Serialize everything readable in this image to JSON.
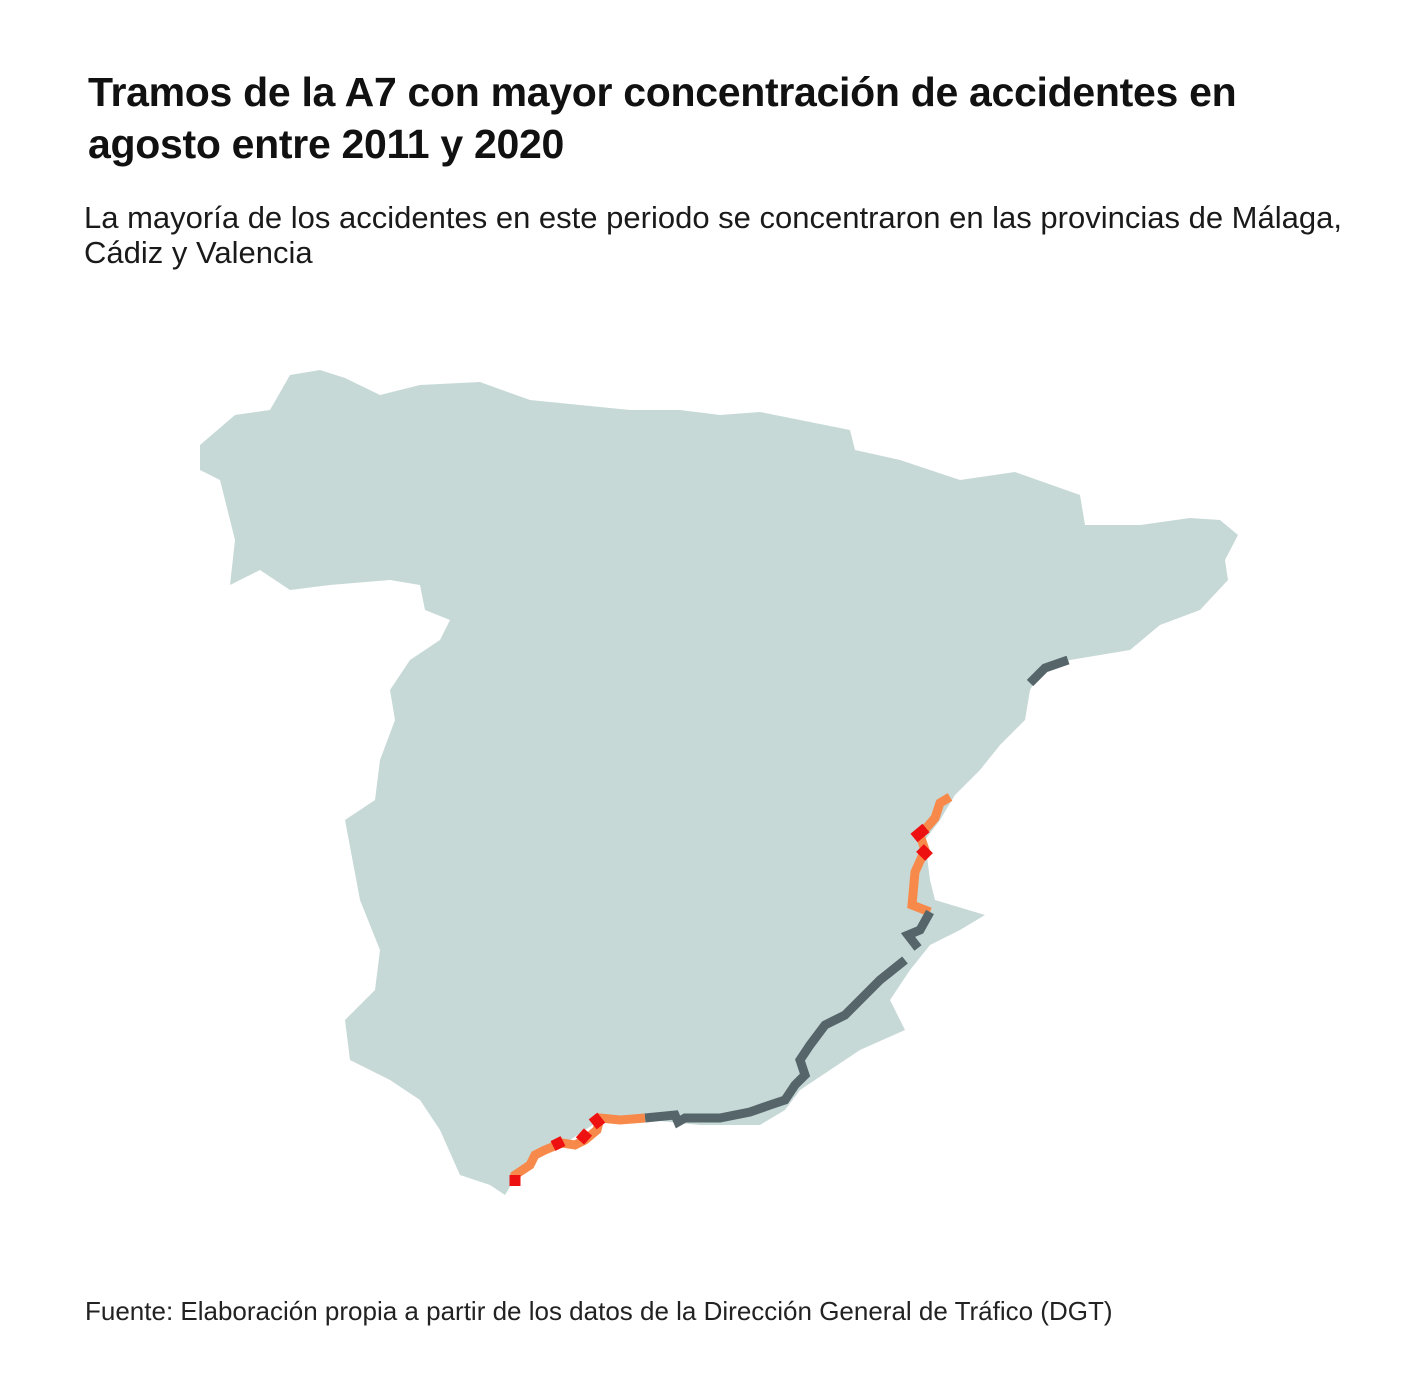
{
  "title": "Tramos de la A7 con mayor concentración de accidentes en agosto entre 2011 y 2020",
  "subtitle": "La mayoría de los accidentes en este periodo se concentraron en las provincias de Málaga, Cádiz y Valencia",
  "source": "Fuente: Elaboración propia a partir de los datos de la Dirección General de Tráfico (DGT)",
  "map": {
    "region": "Spain (peninsular)",
    "road": "A7",
    "colors": {
      "land": "#c6d9d7",
      "low": "#56656a",
      "medium": "#f78a4a",
      "high": "#ee1111"
    },
    "segments": [
      {
        "area": "Catalonia (Tarragona)",
        "level": "low"
      },
      {
        "area": "Valencia",
        "level": "medium"
      },
      {
        "area": "Valencia",
        "level": "high"
      },
      {
        "area": "Alicante",
        "level": "low"
      },
      {
        "area": "Murcia / Almería / Granada",
        "level": "low"
      },
      {
        "area": "Málaga",
        "level": "medium"
      },
      {
        "area": "Málaga",
        "level": "high"
      },
      {
        "area": "Cádiz",
        "level": "high"
      }
    ]
  }
}
